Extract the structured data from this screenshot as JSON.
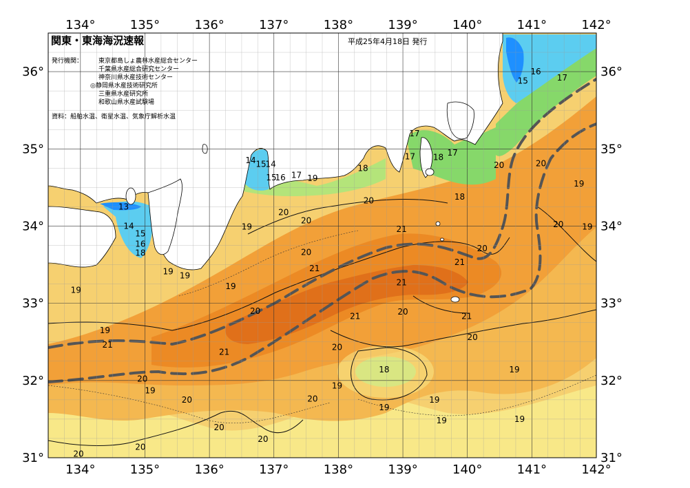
{
  "header": {
    "title": "関東・東海海況速報",
    "issue_date": "平成25年4月18日 発行"
  },
  "issuers": {
    "label": "発行機関：",
    "orgs": [
      "東京都島しょ農林水産総合センター",
      "千葉県水産総合研究センター",
      "神奈川県水産技術センター",
      "◎静岡県水産技術研究所",
      "三重県水産研究所",
      "和歌山県水産試験場"
    ]
  },
  "source_note": "資料：船舶水温、衛星水温、気象庁解析水温",
  "axes": {
    "lon_ticks": [
      "134°",
      "135°",
      "136°",
      "137°",
      "138°",
      "139°",
      "140°",
      "141°",
      "142°"
    ],
    "lat_ticks": [
      "36°",
      "35°",
      "34°",
      "33°",
      "32°",
      "31°"
    ]
  },
  "isotherm_labels": [
    {
      "text": "13",
      "lon": 134.67,
      "lat": 34.25
    },
    {
      "text": "14",
      "lon": 134.75,
      "lat": 34.0
    },
    {
      "text": "15",
      "lon": 134.93,
      "lat": 33.9
    },
    {
      "text": "16",
      "lon": 134.93,
      "lat": 33.77
    },
    {
      "text": "18",
      "lon": 134.93,
      "lat": 33.65
    },
    {
      "text": "14",
      "lon": 136.64,
      "lat": 34.85
    },
    {
      "text": "15",
      "lon": 136.8,
      "lat": 34.8
    },
    {
      "text": "14",
      "lon": 136.95,
      "lat": 34.8
    },
    {
      "text": "15",
      "lon": 136.96,
      "lat": 34.63
    },
    {
      "text": "16",
      "lon": 137.1,
      "lat": 34.63
    },
    {
      "text": "17",
      "lon": 137.35,
      "lat": 34.66
    },
    {
      "text": "19",
      "lon": 137.6,
      "lat": 34.62
    },
    {
      "text": "18",
      "lon": 138.38,
      "lat": 34.75
    },
    {
      "text": "17",
      "lon": 139.18,
      "lat": 35.2
    },
    {
      "text": "17",
      "lon": 139.11,
      "lat": 34.9
    },
    {
      "text": "18",
      "lon": 139.55,
      "lat": 34.89
    },
    {
      "text": "17",
      "lon": 139.77,
      "lat": 34.95
    },
    {
      "text": "18",
      "lon": 139.88,
      "lat": 34.38
    },
    {
      "text": "15",
      "lon": 140.86,
      "lat": 35.88
    },
    {
      "text": "16",
      "lon": 141.06,
      "lat": 36.0
    },
    {
      "text": "17",
      "lon": 141.47,
      "lat": 35.92
    },
    {
      "text": "20",
      "lon": 140.49,
      "lat": 34.79
    },
    {
      "text": "20",
      "lon": 141.14,
      "lat": 34.81
    },
    {
      "text": "19",
      "lon": 141.73,
      "lat": 34.55
    },
    {
      "text": "20",
      "lon": 141.41,
      "lat": 34.02
    },
    {
      "text": "19",
      "lon": 141.86,
      "lat": 33.99
    },
    {
      "text": "20",
      "lon": 138.47,
      "lat": 34.33
    },
    {
      "text": "20",
      "lon": 137.15,
      "lat": 34.18
    },
    {
      "text": "20",
      "lon": 137.5,
      "lat": 34.07
    },
    {
      "text": "19",
      "lon": 136.58,
      "lat": 33.99
    },
    {
      "text": "21",
      "lon": 138.98,
      "lat": 33.96
    },
    {
      "text": "20",
      "lon": 140.23,
      "lat": 33.71
    },
    {
      "text": "20",
      "lon": 137.5,
      "lat": 33.66
    },
    {
      "text": "21",
      "lon": 137.63,
      "lat": 33.45
    },
    {
      "text": "21",
      "lon": 139.88,
      "lat": 33.53
    },
    {
      "text": "19",
      "lon": 135.36,
      "lat": 33.41
    },
    {
      "text": "19",
      "lon": 135.62,
      "lat": 33.36
    },
    {
      "text": "19",
      "lon": 136.33,
      "lat": 33.22
    },
    {
      "text": "21",
      "lon": 138.98,
      "lat": 33.27
    },
    {
      "text": "19",
      "lon": 133.93,
      "lat": 33.17
    },
    {
      "text": "20",
      "lon": 136.71,
      "lat": 32.9
    },
    {
      "text": "20",
      "lon": 139.0,
      "lat": 32.89
    },
    {
      "text": "21",
      "lon": 138.26,
      "lat": 32.83
    },
    {
      "text": "21",
      "lon": 139.99,
      "lat": 32.83
    },
    {
      "text": "19",
      "lon": 134.38,
      "lat": 32.65
    },
    {
      "text": "21",
      "lon": 134.42,
      "lat": 32.46
    },
    {
      "text": "20",
      "lon": 140.08,
      "lat": 32.56
    },
    {
      "text": "20",
      "lon": 137.98,
      "lat": 32.43
    },
    {
      "text": "21",
      "lon": 136.23,
      "lat": 32.37
    },
    {
      "text": "18",
      "lon": 138.71,
      "lat": 32.14
    },
    {
      "text": "19",
      "lon": 140.73,
      "lat": 32.14
    },
    {
      "text": "20",
      "lon": 134.96,
      "lat": 32.02
    },
    {
      "text": "19",
      "lon": 137.98,
      "lat": 31.93
    },
    {
      "text": "19",
      "lon": 135.08,
      "lat": 31.87
    },
    {
      "text": "20",
      "lon": 135.65,
      "lat": 31.75
    },
    {
      "text": "20",
      "lon": 137.6,
      "lat": 31.76
    },
    {
      "text": "19",
      "lon": 139.49,
      "lat": 31.75
    },
    {
      "text": "19",
      "lon": 138.71,
      "lat": 31.65
    },
    {
      "text": "19",
      "lon": 139.6,
      "lat": 31.48
    },
    {
      "text": "19",
      "lon": 140.81,
      "lat": 31.5
    },
    {
      "text": "20",
      "lon": 136.15,
      "lat": 31.39
    },
    {
      "text": "20",
      "lon": 136.83,
      "lat": 31.24
    },
    {
      "text": "20",
      "lon": 134.93,
      "lat": 31.14
    },
    {
      "text": "20",
      "lon": 133.97,
      "lat": 31.05
    }
  ],
  "colors": {
    "t13": "#1e90ff",
    "t14": "#38b0f0",
    "t15": "#5ccdf0",
    "t16": "#78dcc8",
    "t17": "#86d86a",
    "t18": "#b4e47a",
    "t19": "#f8e888",
    "t19b": "#f6d070",
    "t20": "#f4b850",
    "t20b": "#f2a038",
    "t21": "#ec8a24",
    "t22": "#e0701a",
    "land": "#ffffff",
    "kuroshio": "#555555"
  }
}
